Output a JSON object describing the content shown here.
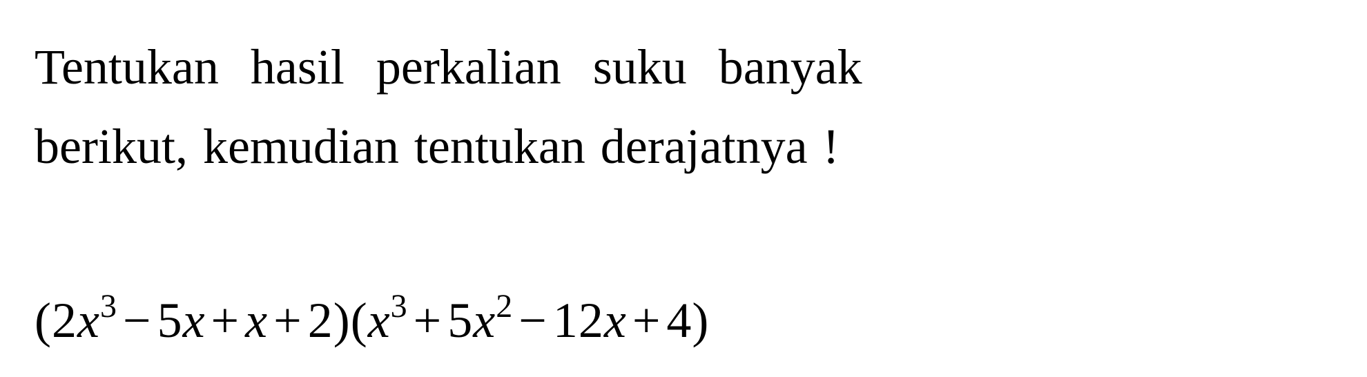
{
  "problem": {
    "line1": "Tentukan hasil perkalian suku banyak",
    "line2": "berikut, kemudian tentukan derajatnya !",
    "expression": {
      "text_fontsize": 72,
      "text_color": "#000000",
      "background_color": "#ffffff",
      "font_family": "Times New Roman",
      "factors": [
        {
          "terms": [
            {
              "coef": "2",
              "var": "x",
              "exp": "3",
              "sign": ""
            },
            {
              "coef": "5",
              "var": "x",
              "exp": "",
              "sign": "−"
            },
            {
              "coef": "",
              "var": "x",
              "exp": "",
              "sign": "+"
            },
            {
              "coef": "2",
              "var": "",
              "exp": "",
              "sign": "+"
            }
          ]
        },
        {
          "terms": [
            {
              "coef": "",
              "var": "x",
              "exp": "3",
              "sign": ""
            },
            {
              "coef": "5",
              "var": "x",
              "exp": "2",
              "sign": "+"
            },
            {
              "coef": "12",
              "var": "x",
              "exp": "",
              "sign": "−"
            },
            {
              "coef": "4",
              "var": "",
              "exp": "",
              "sign": "+"
            }
          ]
        }
      ],
      "parts": {
        "lp1": "(",
        "t1": "2",
        "v1": "x",
        "e1": "3",
        "s1": "−",
        "t2": "5",
        "v2": "x",
        "s2": "+",
        "v3": "x",
        "s3": "+",
        "t4": "2",
        "rp1": ")",
        "lp2": "(",
        "v5": "x",
        "e5": "3",
        "s5": "+",
        "t6": "5",
        "v6": "x",
        "e6": "2",
        "s6": "−",
        "t7": "12",
        "v7": "x",
        "s7": "+",
        "t8": "4",
        "rp2": ")"
      }
    }
  }
}
